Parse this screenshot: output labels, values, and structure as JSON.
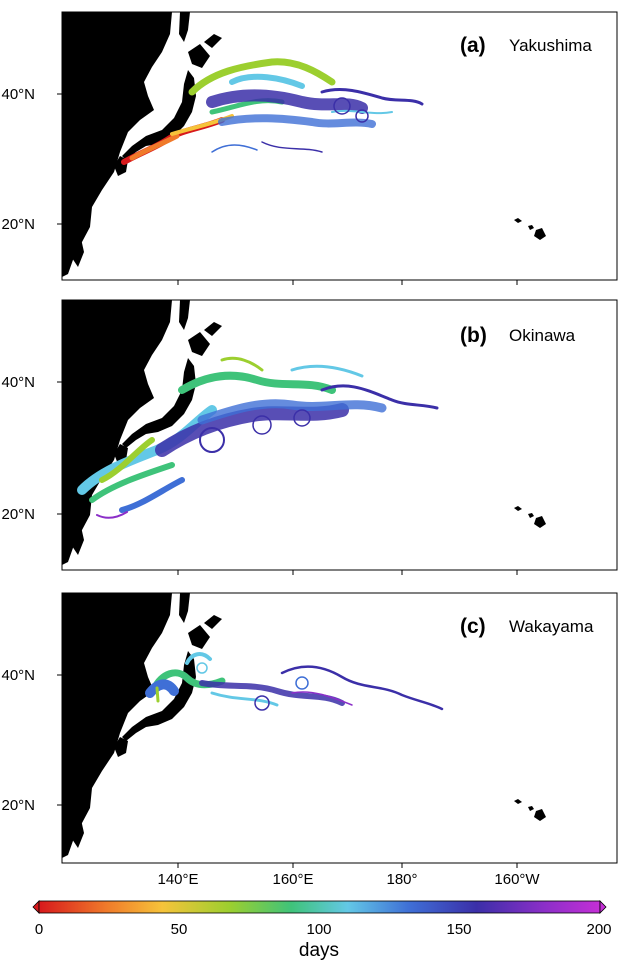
{
  "lon_labels": [
    "140°E",
    "160°E",
    "180°",
    "160°W"
  ],
  "lat_labels": [
    "40°N",
    "20°N"
  ],
  "panels": [
    {
      "label": "(a)",
      "site": "Yakushima"
    },
    {
      "label": "(b)",
      "site": "Okinawa"
    },
    {
      "label": "(c)",
      "site": "Wakayama"
    }
  ],
  "colorbar": {
    "title": "days",
    "ticks": [
      "0",
      "50",
      "100",
      "150",
      "200"
    ],
    "colors": [
      "#d7191c",
      "#f07a2a",
      "#f6c33a",
      "#9ccf2f",
      "#3fc37a",
      "#63c8e6",
      "#3f6fd6",
      "#3b2fa8",
      "#8b2fc8",
      "#c42fd6"
    ]
  },
  "colors": {
    "land": "#000000",
    "ocean": "#ffffff"
  }
}
